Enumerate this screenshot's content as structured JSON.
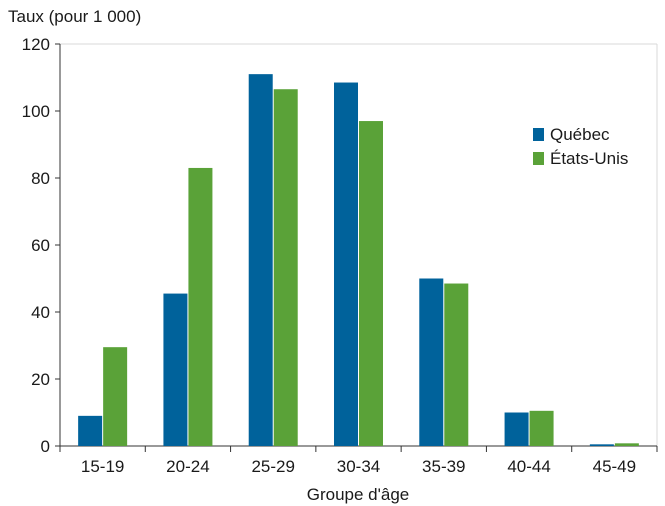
{
  "chart_data": {
    "type": "bar",
    "title": "",
    "ylabel": "Taux (pour 1 000)",
    "xlabel": "Groupe d'âge",
    "categories": [
      "15-19",
      "20-24",
      "25-29",
      "30-34",
      "35-39",
      "40-44",
      "45-49"
    ],
    "series": [
      {
        "name": "Québec",
        "color": "#00629b",
        "values": [
          9,
          45.5,
          111,
          108.5,
          50,
          10,
          0.5
        ]
      },
      {
        "name": "États-Unis",
        "color": "#5aa238",
        "values": [
          29.5,
          83,
          106.5,
          97,
          48.5,
          10.5,
          0.8
        ]
      }
    ],
    "ylim": [
      0,
      120
    ],
    "yticks": [
      0,
      20,
      40,
      60,
      80,
      100,
      120
    ],
    "grid": false,
    "legend_position": "top-right"
  }
}
